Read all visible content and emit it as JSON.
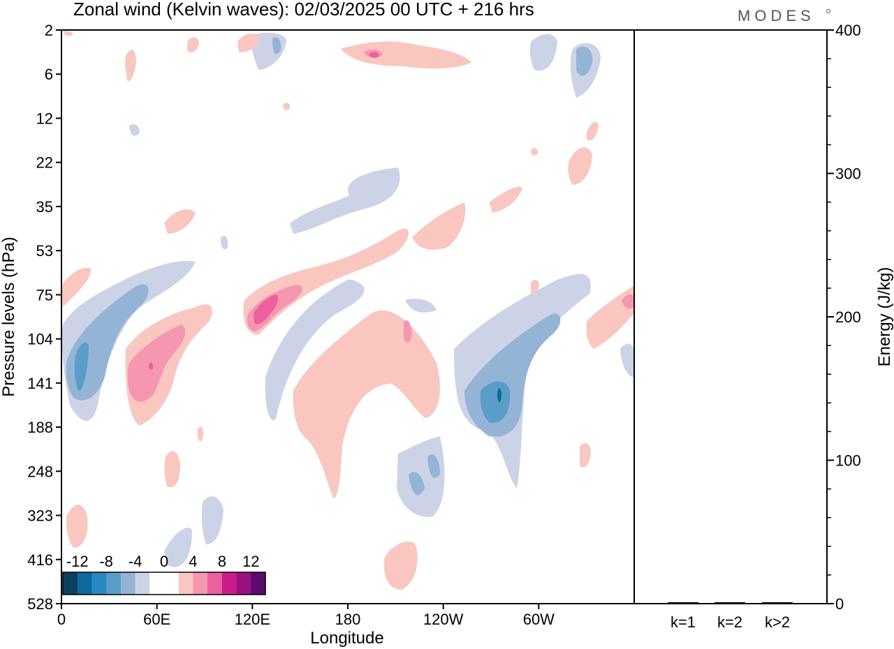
{
  "brand": "MODES",
  "chart_data": [
    {
      "type": "heatmap",
      "title": "Zonal wind (Kelvin waves):  02/03/2025  00 UTC  + 216 hrs",
      "xlabel": "Longitude",
      "ylabel": "Pressure levels (hPa)",
      "x_ticks": [
        "0",
        "60E",
        "120E",
        "180",
        "120W",
        "60W"
      ],
      "y_ticks": [
        "2",
        "6",
        "12",
        "22",
        "35",
        "53",
        "75",
        "104",
        "141",
        "188",
        "248",
        "323",
        "416",
        "528"
      ],
      "colorbar": {
        "tick_labels": [
          "-12",
          "-8",
          "-4",
          "0",
          "4",
          "8",
          "12"
        ],
        "colors": [
          "#0d3f5e",
          "#0e6a9c",
          "#2a88c0",
          "#5b9dc9",
          "#94b4d6",
          "#cdd3e6",
          "#ffffff",
          "#ffffff",
          "#f9c7c0",
          "#f597b0",
          "#ec5fa0",
          "#cc1c8c",
          "#99117f",
          "#5c0a6e"
        ]
      }
    },
    {
      "type": "bar",
      "categories": [
        "k=1",
        "k=2",
        "k>2"
      ],
      "values": [
        0.5,
        0.3,
        0.9
      ],
      "ylabel": "Energy (J/kg)",
      "ylim": [
        0,
        400
      ],
      "y_ticks": [
        "0",
        "100",
        "200",
        "300",
        "400"
      ]
    }
  ]
}
